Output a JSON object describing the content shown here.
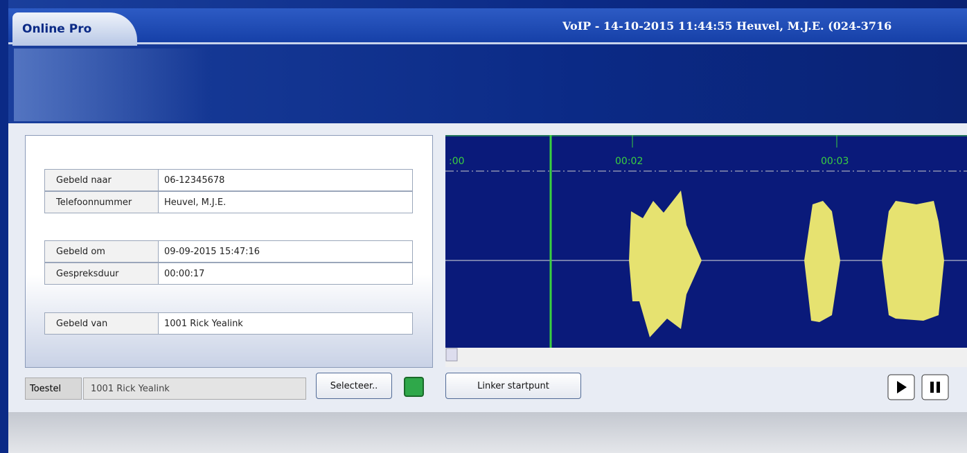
{
  "window": {
    "app_name": "Online Pro",
    "title": "VoIP - 14-10-2015 11:44:55 Heuvel, M.J.E. (024-3716"
  },
  "call_details": {
    "rows": [
      [
        "Gebeld naar",
        "06-12345678"
      ],
      [
        "Telefoonnummer",
        "Heuvel, M.J.E."
      ],
      [
        "Gebeld om",
        "09-09-2015 15:47:16"
      ],
      [
        "Gespreksduur",
        "00:00:17"
      ],
      [
        "Gebeld van",
        "1001 Rick Yealink"
      ]
    ]
  },
  "waveform": {
    "time_labels": [
      ":00",
      "00:02",
      "00:03"
    ]
  },
  "toolbar": {
    "device_label": "Toestel",
    "device_value": "1001 Rick Yealink",
    "select_button": "Selecteer..",
    "cut_button": "Linker startpunt"
  }
}
